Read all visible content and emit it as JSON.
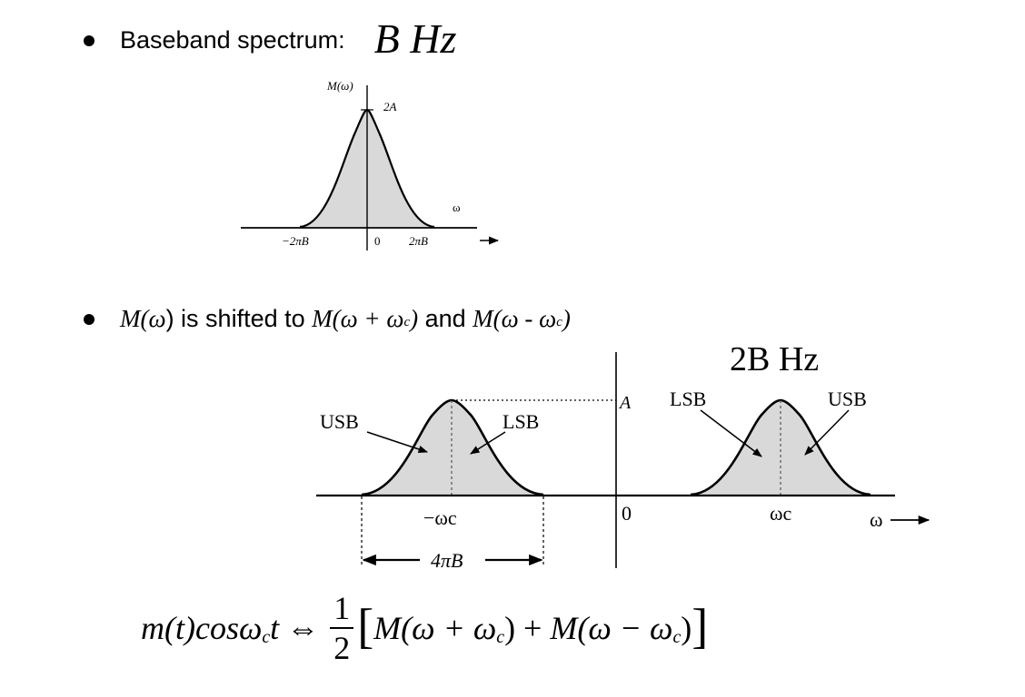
{
  "bullet1": {
    "text": "Baseband spectrum:",
    "value": "B Hz"
  },
  "fig1": {
    "ylabel": "M(ω)",
    "peak_label": "2A",
    "axis_label": "ω",
    "tick_neg": "−2πB",
    "tick_zero": "0",
    "tick_pos": "2πB"
  },
  "bullet2": {
    "m1": "M(",
    "w1": "ω",
    "p1": ") is shifted to ",
    "m2": "M(ω + ω",
    "c2": "c",
    "p2": ")",
    "and": " and ",
    "m3": "M(ω - ω",
    "c3": "c",
    "p3": ")"
  },
  "fig2": {
    "bandwidth_label": "2B Hz",
    "peak_label": "A",
    "left_usb": "USB",
    "left_lsb": "LSB",
    "right_lsb": "LSB",
    "right_usb": "USB",
    "tick_neg": "−ωc",
    "tick_zero": "0",
    "tick_pos": "ωc",
    "axis_label": "ω",
    "span_label": "4πB"
  },
  "formula": {
    "lhs": "m(t)cosω",
    "lhs_sub": "c",
    "lhs_t": "t",
    "iff": "⇔",
    "num": "1",
    "den": "2",
    "lbr": "[",
    "a": "M(ω + ω",
    "a_sub": "c",
    "a_close": ") + ",
    "b": "M(ω − ω",
    "b_sub": "c",
    "b_close": ")",
    "rbr": "]"
  },
  "colors": {
    "ink": "#000000",
    "fill": "#d9d9d9",
    "background": "#ffffff"
  }
}
